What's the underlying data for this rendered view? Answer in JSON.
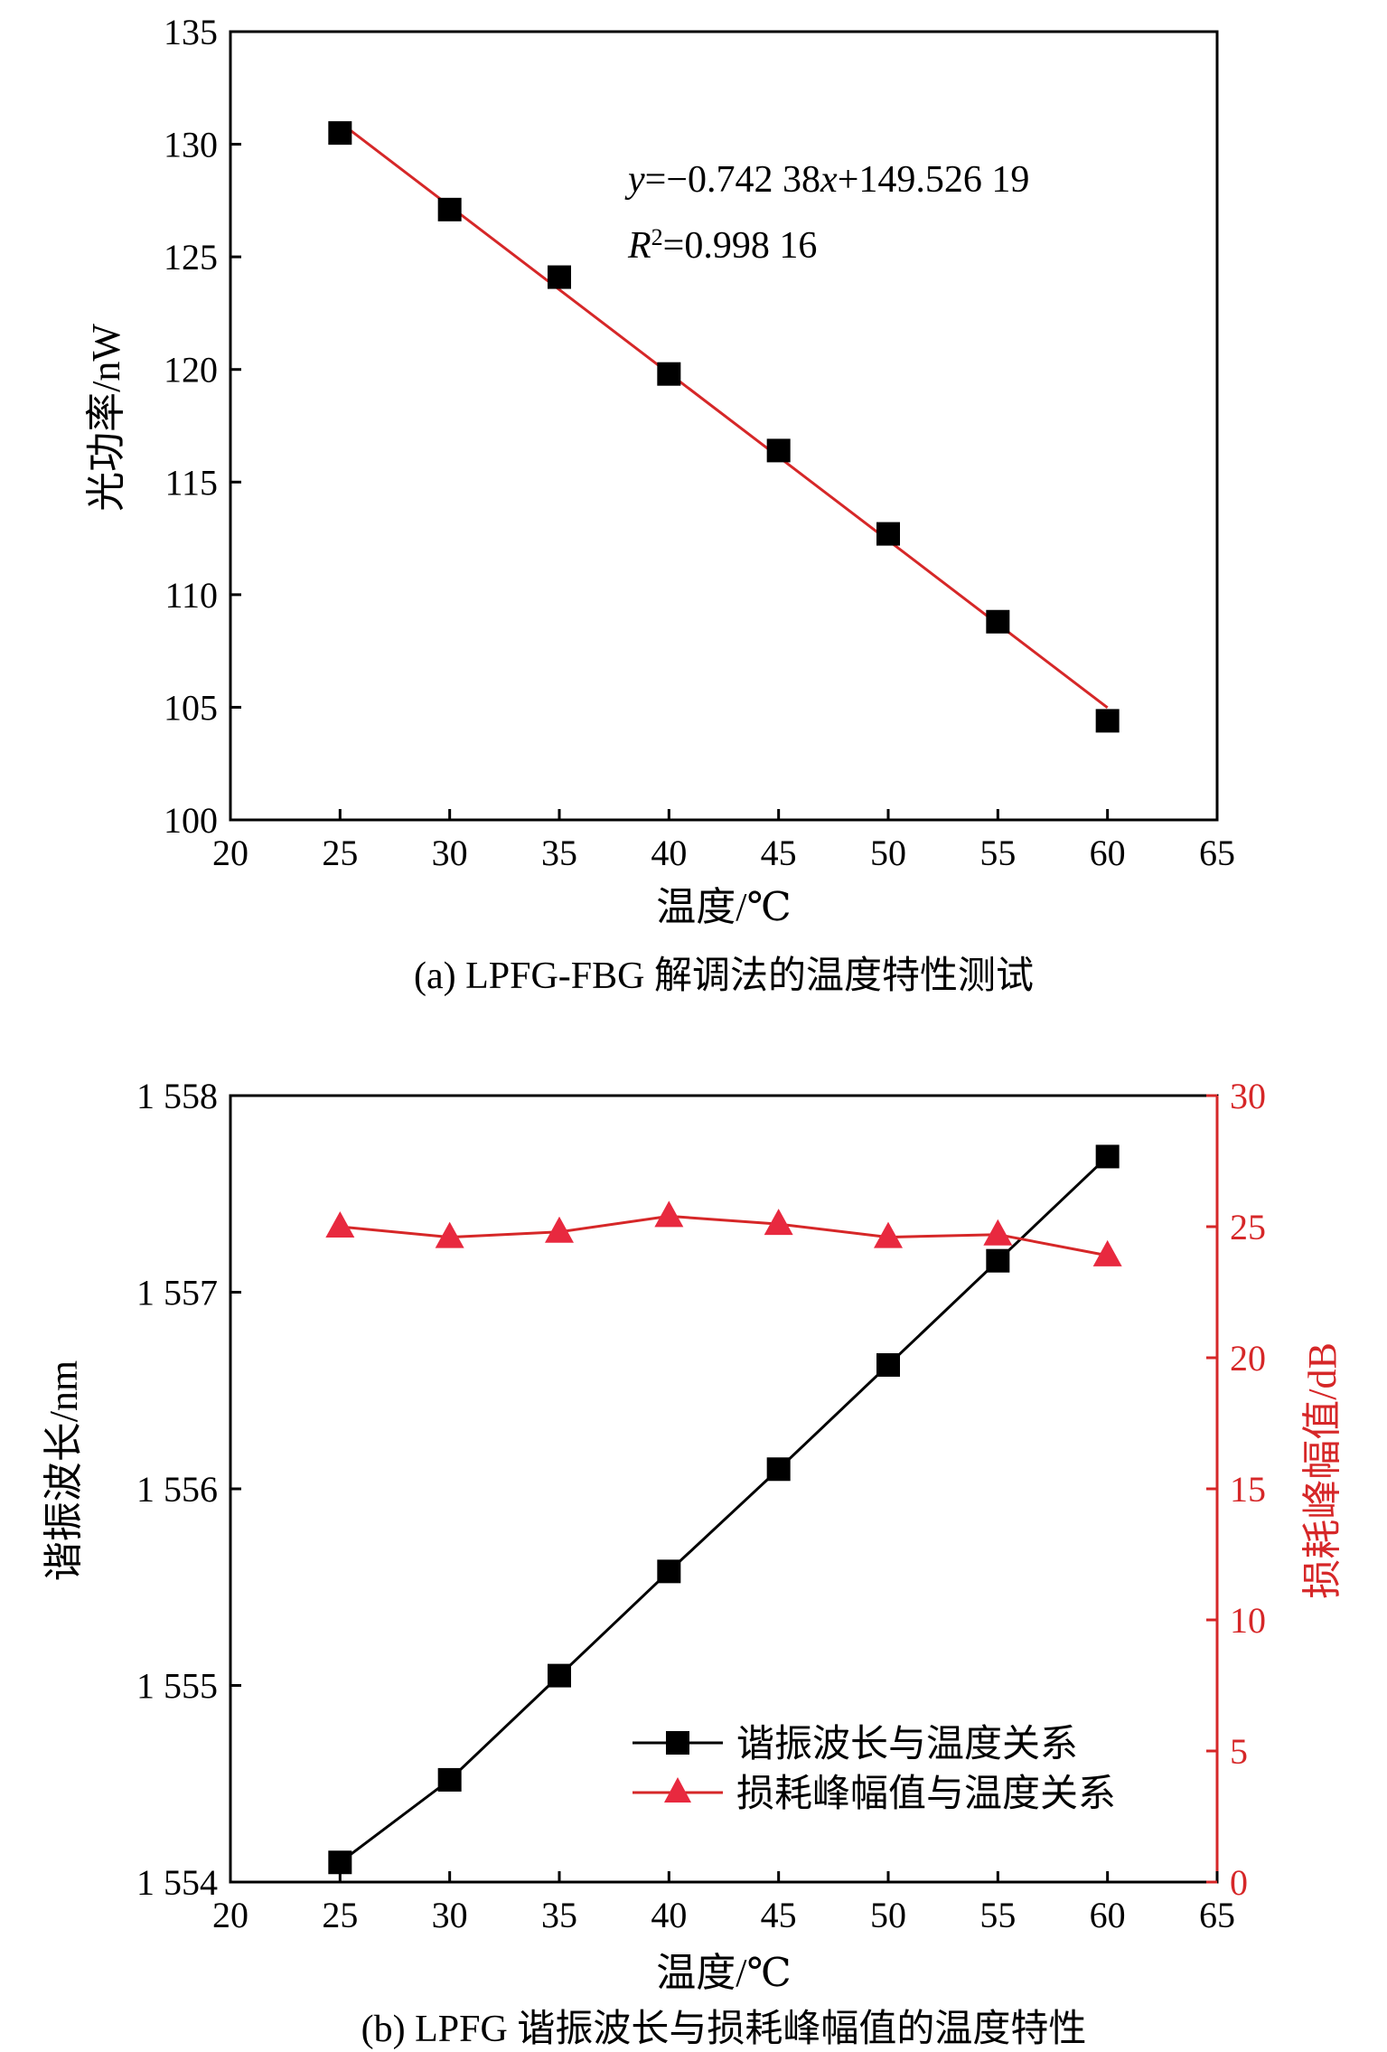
{
  "colors": {
    "black_series": "#000000",
    "red_series": "#d62728",
    "red_axis": "#d62728"
  },
  "chart_data": [
    {
      "type": "scatter",
      "caption": "(a) LPFG-FBG 解调法的温度特性测试",
      "xlabel": "温度/℃",
      "ylabel": "光功率/nW",
      "xlim": [
        20,
        65
      ],
      "ylim": [
        100,
        135
      ],
      "xticks": [
        20,
        25,
        30,
        35,
        40,
        45,
        50,
        55,
        60,
        65
      ],
      "yticks": [
        100,
        105,
        110,
        115,
        120,
        125,
        130,
        135
      ],
      "series": [
        {
          "marker": "square",
          "x": [
            25,
            30,
            35,
            40,
            45,
            50,
            55,
            60
          ],
          "y": [
            130.5,
            127.1,
            124.1,
            119.8,
            116.4,
            112.7,
            108.8,
            104.4
          ]
        }
      ],
      "fit": {
        "slope": -0.74238,
        "intercept": 149.52619,
        "x_range": [
          25,
          60
        ]
      },
      "annotations": {
        "equation": "y=−0.742 38x+149.526 19",
        "r2": "R2=0.998 16"
      }
    },
    {
      "type": "line",
      "caption": "(b) LPFG 谐振波长与损耗峰幅值的温度特性",
      "xlabel": "温度/℃",
      "ylabel_left": "谐振波长/nm",
      "ylabel_right": "损耗峰幅值/dB",
      "xlim": [
        20,
        65
      ],
      "ylim_left": [
        1554,
        1558
      ],
      "ylim_right": [
        0,
        30
      ],
      "xticks": [
        20,
        25,
        30,
        35,
        40,
        45,
        50,
        55,
        60,
        65
      ],
      "yticks_left": [
        "1 554",
        "1 555",
        "1 556",
        "1 557",
        "1 558"
      ],
      "yticks_left_values": [
        1554,
        1555,
        1556,
        1557,
        1558
      ],
      "yticks_right": [
        0,
        5,
        10,
        15,
        20,
        25,
        30
      ],
      "series": [
        {
          "name": "谐振波长与温度关系",
          "axis": "left",
          "marker": "square",
          "x": [
            25,
            30,
            35,
            40,
            45,
            50,
            55,
            60
          ],
          "y": [
            1554.1,
            1554.52,
            1555.05,
            1555.58,
            1556.1,
            1556.63,
            1557.16,
            1557.69
          ]
        },
        {
          "name": "损耗峰幅值与温度关系",
          "axis": "right",
          "marker": "triangle",
          "x": [
            25,
            30,
            35,
            40,
            45,
            50,
            55,
            60
          ],
          "y": [
            25.0,
            24.6,
            24.8,
            25.4,
            25.1,
            24.6,
            24.7,
            23.9
          ]
        }
      ],
      "legend_position": "bottom-right"
    }
  ]
}
